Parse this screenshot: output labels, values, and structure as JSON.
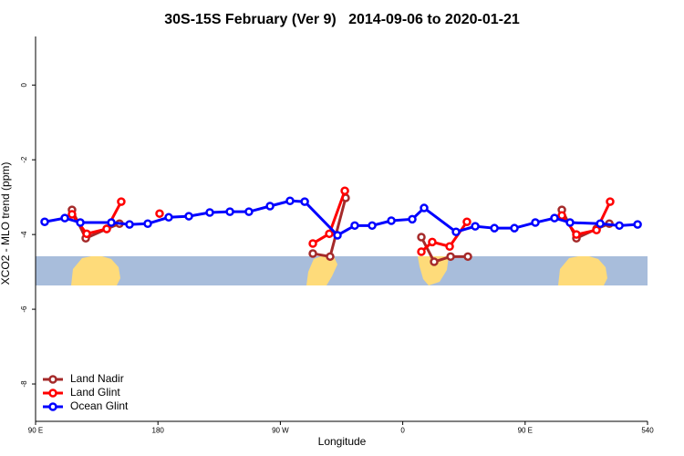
{
  "chart_data": {
    "type": "line",
    "title": "30S-15S February (Ver 9)   2014-09-06 to 2020-01-21",
    "xlabel": "Longitude",
    "ylabel": "XCO2 - MLO trend (ppm)",
    "xlim": [
      90,
      540
    ],
    "ylim": [
      -9,
      1.3
    ],
    "xticks": [
      {
        "value": 90,
        "label": "90 E"
      },
      180,
      {
        "value": 270,
        "label": "90 W"
      },
      {
        "value": 360,
        "label": "0"
      },
      {
        "value": 450,
        "label": "90 E"
      },
      540
    ],
    "yticks": [
      0,
      -2,
      -4,
      -6,
      -8
    ],
    "legend": "bottom-left",
    "series": [
      {
        "name": "Land Nadir",
        "color": "#a52a2a",
        "x": [
          116.8,
          126.9,
          142.3,
          151.7,
          null,
          293.9,
          306.6,
          318.0,
          null,
          373.7,
          383.1,
          395.2,
          407.9,
          null,
          477.0,
          487.7,
          502.5,
          511.9
        ],
        "values": [
          -3.34,
          -4.1,
          -3.85,
          -3.71,
          null,
          -4.51,
          -4.59,
          -3.02,
          null,
          -4.07,
          -4.73,
          -4.59,
          -4.59,
          null,
          -3.34,
          -4.1,
          -3.85,
          -3.71
        ]
      },
      {
        "name": "Land Glint",
        "color": "#ff0000",
        "x": [
          116.8,
          127.6,
          142.3,
          153.0,
          null,
          181.2,
          null,
          293.9,
          306.0,
          317.4,
          null,
          373.7,
          381.7,
          394.5,
          407.2,
          null,
          477.0,
          487.7,
          502.5,
          512.5
        ],
        "values": [
          -3.46,
          -3.98,
          -3.85,
          -3.12,
          null,
          -3.44,
          null,
          -4.24,
          -3.98,
          -2.83,
          null,
          -4.46,
          -4.2,
          -4.32,
          -3.66,
          null,
          -3.49,
          -4.0,
          -3.88,
          -3.12
        ]
      },
      {
        "name": "Ocean Glint",
        "color": "#0000ff",
        "x": [
          96.7,
          111.5,
          122.9,
          145.7,
          159.1,
          172.5,
          187.9,
          202.7,
          218.1,
          232.9,
          246.9,
          262.4,
          277.1,
          287.9,
          312.0,
          324.7,
          337.5,
          351.6,
          367.0,
          375.7,
          399.2,
          413.3,
          427.4,
          442.1,
          457.5,
          471.6,
          483.0,
          505.2,
          519.3,
          532.7
        ],
        "values": [
          -3.66,
          -3.56,
          -3.68,
          -3.68,
          -3.73,
          -3.71,
          -3.54,
          -3.51,
          -3.41,
          -3.39,
          -3.39,
          -3.24,
          -3.1,
          -3.12,
          -4.02,
          -3.76,
          -3.76,
          -3.63,
          -3.59,
          -3.29,
          -3.93,
          -3.78,
          -3.83,
          -3.83,
          -3.68,
          -3.56,
          -3.68,
          -3.71,
          -3.76,
          -3.73
        ]
      }
    ]
  }
}
